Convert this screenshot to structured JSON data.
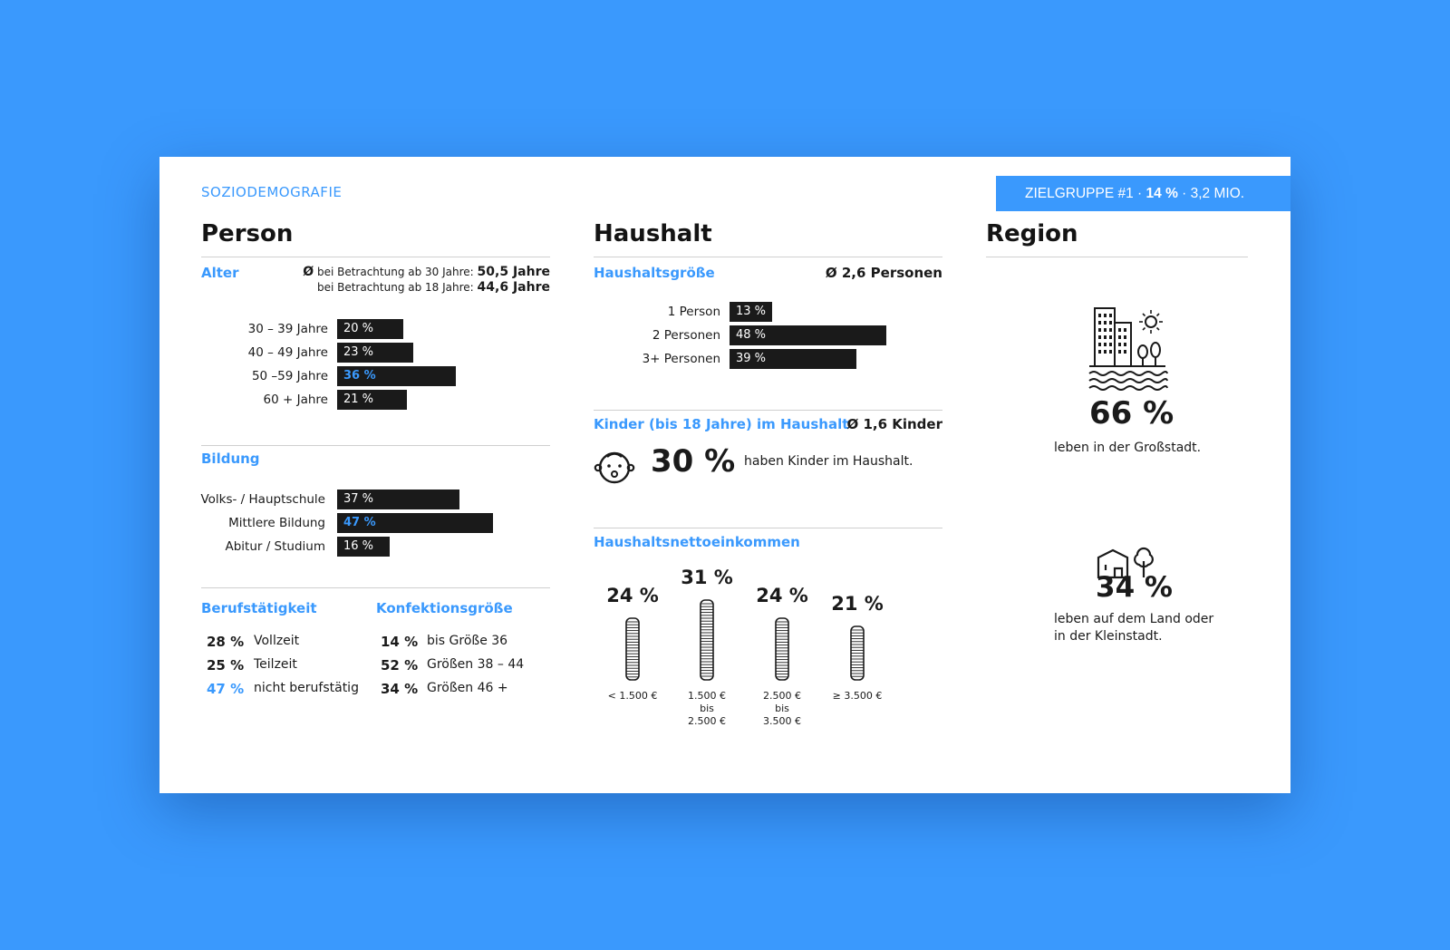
{
  "header": {
    "kicker": "SOZIODEMOGRAFIE",
    "badge": {
      "prefix": "ZIELGRUPPE #1 · ",
      "pct": "14 %",
      "suffix": " · 3,2 MIO."
    }
  },
  "person": {
    "title": "Person",
    "alter": {
      "label": "Alter",
      "avg1_prefix": "Ø",
      "avg1_text": " bei Betrachtung ab 30 Jahre: ",
      "avg1_value": "50,5 Jahre",
      "avg2_text": "bei Betrachtung ab 18 Jahre: ",
      "avg2_value": "44,6 Jahre",
      "bars": [
        {
          "label": "30 – 39 Jahre",
          "value": 20,
          "text": "20 %",
          "highlight": false
        },
        {
          "label": "40 – 49 Jahre",
          "value": 23,
          "text": "23 %",
          "highlight": false
        },
        {
          "label": "50 –59 Jahre",
          "value": 36,
          "text": "36 %",
          "highlight": true
        },
        {
          "label": "60 + Jahre",
          "value": 21,
          "text": "21 %",
          "highlight": false
        }
      ]
    },
    "bildung": {
      "label": "Bildung",
      "bars": [
        {
          "label": "Volks- /  Hauptschule",
          "value": 37,
          "text": "37 %",
          "highlight": false
        },
        {
          "label": "Mittlere Bildung",
          "value": 47,
          "text": "47 %",
          "highlight": true
        },
        {
          "label": "Abitur / Studium",
          "value": 16,
          "text": "16 %",
          "highlight": false
        }
      ]
    },
    "beruf": {
      "label": "Berufstätigkeit",
      "items": [
        {
          "pct": "28 %",
          "text": "Vollzeit",
          "highlight": false
        },
        {
          "pct": "25 %",
          "text": "Teilzeit",
          "highlight": false
        },
        {
          "pct": "47 %",
          "text": "nicht berufstätig",
          "highlight": true
        }
      ]
    },
    "konfektion": {
      "label": "Konfektionsgröße",
      "items": [
        {
          "pct": "14 %",
          "text": "bis Größe 36"
        },
        {
          "pct": "52 %",
          "text": "Größen 38 – 44"
        },
        {
          "pct": "34 %",
          "text": "Größen 46 +"
        }
      ]
    }
  },
  "haushalt": {
    "title": "Haushalt",
    "groesse": {
      "label": "Haushaltsgröße",
      "avg": "Ø 2,6 Personen",
      "bars": [
        {
          "label": "1 Person",
          "value": 13,
          "text": "13 %"
        },
        {
          "label": "2 Personen",
          "value": 48,
          "text": "48 %"
        },
        {
          "label": "3+ Personen",
          "value": 39,
          "text": "39 %"
        }
      ]
    },
    "kinder": {
      "label": "Kinder (bis 18 Jahre) im Haushalt",
      "avg": "Ø 1,6 Kinder",
      "pct": "30 %",
      "text": "haben Kinder im Haushalt."
    },
    "einkommen": {
      "label": "Haushaltsnettoeinkommen",
      "stacks": [
        {
          "pct": "24 %",
          "value": 24,
          "label_lines": [
            "< 1.500 €"
          ]
        },
        {
          "pct": "31 %",
          "value": 31,
          "label_lines": [
            "1.500 €",
            "bis",
            "2.500 €"
          ]
        },
        {
          "pct": "24 %",
          "value": 24,
          "label_lines": [
            "2.500 €",
            "bis",
            "3.500 €"
          ]
        },
        {
          "pct": "21 %",
          "value": 21,
          "label_lines": [
            "≥ 3.500 €"
          ]
        }
      ]
    }
  },
  "region": {
    "title": "Region",
    "city": {
      "pct": "66 %",
      "text": "leben in der Großstadt."
    },
    "land": {
      "pct": "34 %",
      "text_line1": "leben auf dem Land oder",
      "text_line2": "in der Kleinstadt."
    }
  },
  "colors": {
    "accent": "#3a99fd",
    "bar": "#1a1a1a",
    "background": "#3a99fd"
  },
  "icons": [
    "city-river-sun-icon",
    "house-tree-icon",
    "baby-face-icon",
    "coin-stack-icon"
  ]
}
